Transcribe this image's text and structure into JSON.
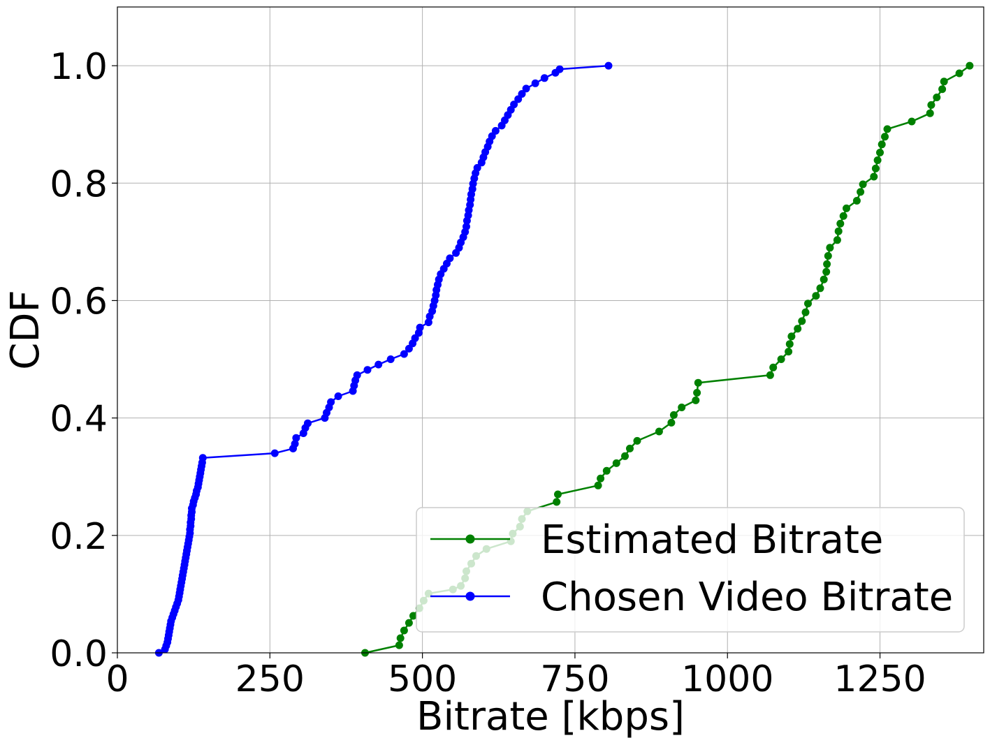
{
  "chart_data": {
    "type": "line",
    "xlabel": "Bitrate [kbps]",
    "ylabel": "CDF",
    "xlim": [
      0,
      1420
    ],
    "ylim": [
      0,
      1.1
    ],
    "x_ticks": [
      0,
      250,
      500,
      750,
      1000,
      1250
    ],
    "x_tick_labels": [
      "0",
      "250",
      "500",
      "750",
      "1000",
      "1250"
    ],
    "y_ticks": [
      0,
      0.2,
      0.4,
      0.6,
      0.8,
      1.0
    ],
    "y_tick_labels": [
      "0.0",
      "0.2",
      "0.4",
      "0.6",
      "0.8",
      "1.0"
    ],
    "grid": true,
    "legend_position": "bottom-right",
    "series": [
      {
        "name": "Estimated Bitrate",
        "color": "#008000",
        "points": [
          [
            406,
            0.0
          ],
          [
            462,
            0.013
          ],
          [
            464,
            0.025
          ],
          [
            470,
            0.038
          ],
          [
            478,
            0.051
          ],
          [
            485,
            0.063
          ],
          [
            495,
            0.076
          ],
          [
            502,
            0.089
          ],
          [
            510,
            0.101
          ],
          [
            550,
            0.108
          ],
          [
            563,
            0.114
          ],
          [
            570,
            0.127
          ],
          [
            572,
            0.139
          ],
          [
            580,
            0.152
          ],
          [
            588,
            0.165
          ],
          [
            605,
            0.177
          ],
          [
            645,
            0.19
          ],
          [
            648,
            0.203
          ],
          [
            660,
            0.215
          ],
          [
            663,
            0.228
          ],
          [
            672,
            0.241
          ],
          [
            720,
            0.257
          ],
          [
            722,
            0.27
          ],
          [
            788,
            0.285
          ],
          [
            792,
            0.297
          ],
          [
            802,
            0.31
          ],
          [
            818,
            0.323
          ],
          [
            832,
            0.335
          ],
          [
            840,
            0.348
          ],
          [
            852,
            0.361
          ],
          [
            888,
            0.377
          ],
          [
            908,
            0.392
          ],
          [
            912,
            0.405
          ],
          [
            925,
            0.418
          ],
          [
            948,
            0.43
          ],
          [
            950,
            0.443
          ],
          [
            952,
            0.46
          ],
          [
            1070,
            0.473
          ],
          [
            1075,
            0.486
          ],
          [
            1088,
            0.5
          ],
          [
            1100,
            0.513
          ],
          [
            1102,
            0.526
          ],
          [
            1105,
            0.539
          ],
          [
            1115,
            0.552
          ],
          [
            1122,
            0.565
          ],
          [
            1128,
            0.58
          ],
          [
            1132,
            0.595
          ],
          [
            1145,
            0.608
          ],
          [
            1152,
            0.621
          ],
          [
            1158,
            0.636
          ],
          [
            1162,
            0.649
          ],
          [
            1163,
            0.662
          ],
          [
            1165,
            0.676
          ],
          [
            1168,
            0.69
          ],
          [
            1180,
            0.703
          ],
          [
            1182,
            0.718
          ],
          [
            1185,
            0.731
          ],
          [
            1190,
            0.744
          ],
          [
            1195,
            0.757
          ],
          [
            1212,
            0.77
          ],
          [
            1218,
            0.785
          ],
          [
            1222,
            0.798
          ],
          [
            1240,
            0.811
          ],
          [
            1243,
            0.825
          ],
          [
            1246,
            0.839
          ],
          [
            1250,
            0.852
          ],
          [
            1253,
            0.866
          ],
          [
            1258,
            0.879
          ],
          [
            1262,
            0.892
          ],
          [
            1302,
            0.905
          ],
          [
            1332,
            0.919
          ],
          [
            1334,
            0.933
          ],
          [
            1343,
            0.946
          ],
          [
            1352,
            0.96
          ],
          [
            1355,
            0.973
          ],
          [
            1380,
            0.987
          ],
          [
            1397,
            1.0
          ]
        ]
      },
      {
        "name": "Chosen Video Bitrate",
        "color": "#0000ff",
        "points": [
          [
            68,
            0.0
          ],
          [
            78,
            0.006
          ],
          [
            80,
            0.012
          ],
          [
            82,
            0.018
          ],
          [
            83,
            0.024
          ],
          [
            84,
            0.03
          ],
          [
            85,
            0.036
          ],
          [
            86,
            0.042
          ],
          [
            87,
            0.048
          ],
          [
            88,
            0.054
          ],
          [
            90,
            0.06
          ],
          [
            92,
            0.066
          ],
          [
            94,
            0.072
          ],
          [
            96,
            0.078
          ],
          [
            98,
            0.084
          ],
          [
            100,
            0.09
          ],
          [
            101,
            0.096
          ],
          [
            102,
            0.102
          ],
          [
            103,
            0.108
          ],
          [
            104,
            0.114
          ],
          [
            105,
            0.12
          ],
          [
            106,
            0.126
          ],
          [
            107,
            0.132
          ],
          [
            108,
            0.138
          ],
          [
            109,
            0.144
          ],
          [
            110,
            0.15
          ],
          [
            111,
            0.156
          ],
          [
            112,
            0.162
          ],
          [
            113,
            0.168
          ],
          [
            114,
            0.174
          ],
          [
            115,
            0.18
          ],
          [
            116,
            0.186
          ],
          [
            117,
            0.192
          ],
          [
            118,
            0.198
          ],
          [
            119,
            0.204
          ],
          [
            119,
            0.21
          ],
          [
            120,
            0.216
          ],
          [
            120,
            0.222
          ],
          [
            121,
            0.228
          ],
          [
            121,
            0.234
          ],
          [
            122,
            0.24
          ],
          [
            122,
            0.246
          ],
          [
            124,
            0.252
          ],
          [
            125,
            0.258
          ],
          [
            127,
            0.264
          ],
          [
            129,
            0.27
          ],
          [
            130,
            0.276
          ],
          [
            132,
            0.282
          ],
          [
            133,
            0.288
          ],
          [
            134,
            0.294
          ],
          [
            135,
            0.3
          ],
          [
            136,
            0.306
          ],
          [
            137,
            0.312
          ],
          [
            138,
            0.318
          ],
          [
            139,
            0.324
          ],
          [
            140,
            0.332
          ],
          [
            258,
            0.34
          ],
          [
            288,
            0.348
          ],
          [
            291,
            0.356
          ],
          [
            293,
            0.366
          ],
          [
            305,
            0.374
          ],
          [
            308,
            0.383
          ],
          [
            312,
            0.391
          ],
          [
            340,
            0.4
          ],
          [
            343,
            0.409
          ],
          [
            347,
            0.418
          ],
          [
            350,
            0.427
          ],
          [
            362,
            0.437
          ],
          [
            386,
            0.446
          ],
          [
            388,
            0.455
          ],
          [
            390,
            0.464
          ],
          [
            393,
            0.473
          ],
          [
            410,
            0.482
          ],
          [
            428,
            0.491
          ],
          [
            448,
            0.5
          ],
          [
            470,
            0.509
          ],
          [
            478,
            0.518
          ],
          [
            484,
            0.527
          ],
          [
            488,
            0.536
          ],
          [
            494,
            0.545
          ],
          [
            496,
            0.554
          ],
          [
            510,
            0.563
          ],
          [
            512,
            0.573
          ],
          [
            516,
            0.582
          ],
          [
            518,
            0.591
          ],
          [
            520,
            0.6
          ],
          [
            522,
            0.609
          ],
          [
            523,
            0.618
          ],
          [
            525,
            0.627
          ],
          [
            527,
            0.636
          ],
          [
            530,
            0.645
          ],
          [
            535,
            0.654
          ],
          [
            540,
            0.663
          ],
          [
            545,
            0.672
          ],
          [
            555,
            0.681
          ],
          [
            560,
            0.69
          ],
          [
            563,
            0.699
          ],
          [
            567,
            0.708
          ],
          [
            570,
            0.717
          ],
          [
            572,
            0.726
          ],
          [
            573,
            0.736
          ],
          [
            575,
            0.745
          ],
          [
            576,
            0.754
          ],
          [
            578,
            0.763
          ],
          [
            579,
            0.772
          ],
          [
            580,
            0.781
          ],
          [
            582,
            0.79
          ],
          [
            583,
            0.799
          ],
          [
            585,
            0.808
          ],
          [
            587,
            0.817
          ],
          [
            590,
            0.826
          ],
          [
            597,
            0.835
          ],
          [
            600,
            0.844
          ],
          [
            603,
            0.853
          ],
          [
            607,
            0.862
          ],
          [
            610,
            0.871
          ],
          [
            614,
            0.88
          ],
          [
            620,
            0.889
          ],
          [
            630,
            0.898
          ],
          [
            635,
            0.907
          ],
          [
            640,
            0.916
          ],
          [
            645,
            0.925
          ],
          [
            650,
            0.934
          ],
          [
            657,
            0.943
          ],
          [
            663,
            0.952
          ],
          [
            670,
            0.961
          ],
          [
            685,
            0.97
          ],
          [
            700,
            0.979
          ],
          [
            718,
            0.988
          ],
          [
            725,
            0.994
          ],
          [
            805,
            1.0
          ]
        ]
      }
    ]
  }
}
